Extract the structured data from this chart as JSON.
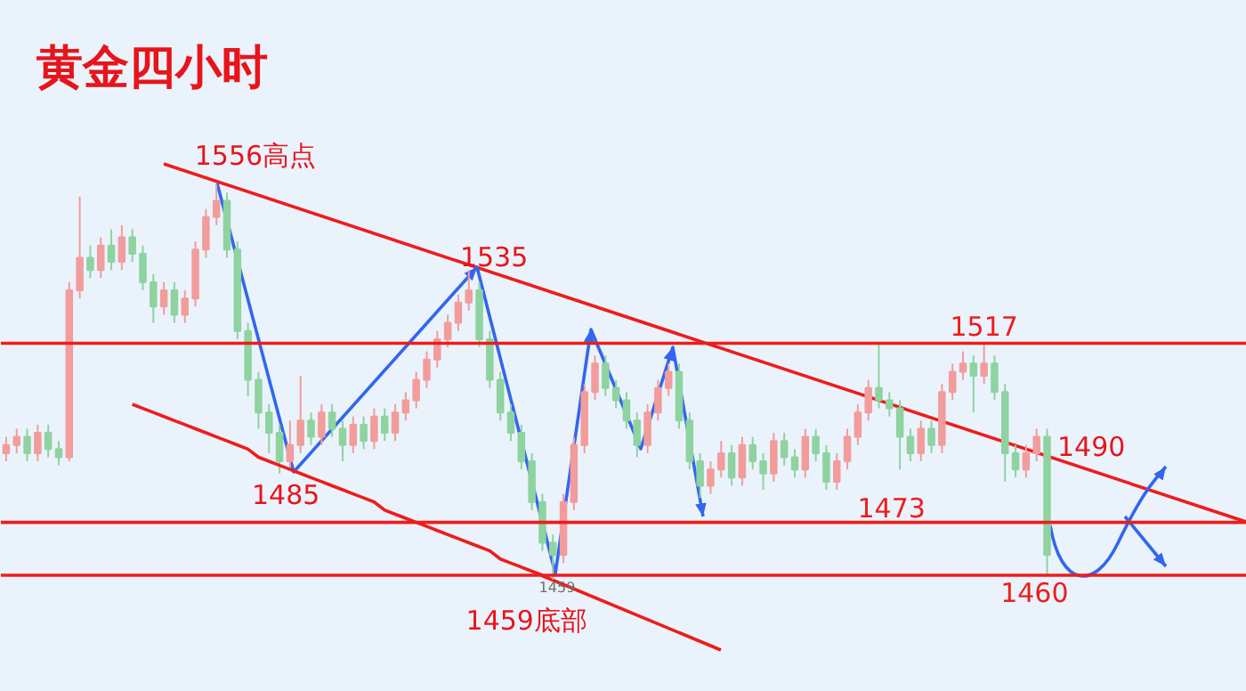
{
  "chart_data": {
    "type": "candlestick",
    "title": "黄金四小时",
    "categories": [
      null,
      null,
      null,
      null,
      null,
      null,
      null,
      null,
      null,
      null,
      null,
      null,
      null,
      null,
      null,
      null,
      null,
      null,
      null,
      null,
      null,
      null,
      null,
      null,
      null,
      null,
      null,
      null,
      null,
      null,
      null,
      null,
      null,
      null,
      null,
      null,
      null,
      null,
      null,
      null,
      null,
      null,
      null,
      null,
      null,
      null,
      null,
      null,
      null,
      null,
      null,
      null,
      null,
      null,
      null,
      null,
      null,
      null,
      null,
      null,
      null,
      null,
      null,
      null,
      null,
      null,
      null,
      null,
      null,
      null,
      null,
      null,
      null,
      null,
      null,
      null,
      null,
      null,
      null,
      null,
      null,
      null,
      null,
      null,
      null,
      null,
      null,
      null,
      null,
      null,
      null,
      null,
      null,
      null,
      null,
      null,
      null,
      null,
      null,
      null
    ],
    "ohlc": [
      [
        1490,
        1494,
        1488,
        1492
      ],
      [
        1492,
        1496,
        1490,
        1494
      ],
      [
        1494,
        1496,
        1488,
        1490
      ],
      [
        1490,
        1497,
        1488,
        1495
      ],
      [
        1495,
        1497,
        1489,
        1491
      ],
      [
        1491,
        1493,
        1487,
        1489
      ],
      [
        1489,
        1532,
        1488,
        1530
      ],
      [
        1530,
        1553,
        1528,
        1538
      ],
      [
        1538,
        1541,
        1533,
        1535
      ],
      [
        1535,
        1543,
        1533,
        1541
      ],
      [
        1541,
        1545,
        1535,
        1537
      ],
      [
        1537,
        1546,
        1535,
        1543
      ],
      [
        1543,
        1545,
        1537,
        1539
      ],
      [
        1539,
        1541,
        1530,
        1532
      ],
      [
        1532,
        1534,
        1522,
        1526
      ],
      [
        1526,
        1532,
        1524,
        1530
      ],
      [
        1530,
        1532,
        1522,
        1524
      ],
      [
        1524,
        1530,
        1522,
        1528
      ],
      [
        1528,
        1542,
        1526,
        1540
      ],
      [
        1540,
        1550,
        1538,
        1548
      ],
      [
        1548,
        1556,
        1546,
        1552
      ],
      [
        1552,
        1554,
        1538,
        1540
      ],
      [
        1540,
        1542,
        1518,
        1520
      ],
      [
        1520,
        1522,
        1504,
        1508
      ],
      [
        1508,
        1510,
        1496,
        1500
      ],
      [
        1500,
        1502,
        1490,
        1495
      ],
      [
        1495,
        1497,
        1485,
        1488
      ],
      [
        1488,
        1498,
        1486,
        1492
      ],
      [
        1492,
        1509,
        1490,
        1498
      ],
      [
        1498,
        1500,
        1492,
        1494
      ],
      [
        1494,
        1502,
        1492,
        1500
      ],
      [
        1500,
        1502,
        1494,
        1496
      ],
      [
        1496,
        1498,
        1488,
        1492
      ],
      [
        1492,
        1499,
        1490,
        1497
      ],
      [
        1497,
        1499,
        1491,
        1493
      ],
      [
        1493,
        1501,
        1491,
        1499
      ],
      [
        1499,
        1501,
        1493,
        1495
      ],
      [
        1495,
        1502,
        1493,
        1500
      ],
      [
        1500,
        1505,
        1498,
        1503
      ],
      [
        1503,
        1510,
        1501,
        1508
      ],
      [
        1508,
        1515,
        1506,
        1513
      ],
      [
        1513,
        1520,
        1511,
        1518
      ],
      [
        1518,
        1524,
        1516,
        1522
      ],
      [
        1522,
        1529,
        1520,
        1527
      ],
      [
        1527,
        1535,
        1525,
        1530
      ],
      [
        1530,
        1532,
        1516,
        1518
      ],
      [
        1518,
        1520,
        1506,
        1508
      ],
      [
        1508,
        1510,
        1498,
        1500
      ],
      [
        1500,
        1502,
        1493,
        1495
      ],
      [
        1495,
        1497,
        1486,
        1488
      ],
      [
        1488,
        1490,
        1476,
        1478
      ],
      [
        1478,
        1480,
        1466,
        1468
      ],
      [
        1468,
        1470,
        1459,
        1465
      ],
      [
        1465,
        1480,
        1463,
        1478
      ],
      [
        1478,
        1494,
        1476,
        1492
      ],
      [
        1492,
        1507,
        1490,
        1505
      ],
      [
        1505,
        1514,
        1503,
        1512
      ],
      [
        1512,
        1514,
        1504,
        1506
      ],
      [
        1506,
        1508,
        1501,
        1503
      ],
      [
        1503,
        1505,
        1496,
        1498
      ],
      [
        1498,
        1500,
        1489,
        1492
      ],
      [
        1492,
        1502,
        1490,
        1500
      ],
      [
        1500,
        1508,
        1498,
        1506
      ],
      [
        1506,
        1512,
        1504,
        1510
      ],
      [
        1510,
        1512,
        1496,
        1498
      ],
      [
        1498,
        1500,
        1486,
        1488
      ],
      [
        1488,
        1490,
        1479,
        1482
      ],
      [
        1482,
        1488,
        1480,
        1486
      ],
      [
        1486,
        1493,
        1484,
        1490
      ],
      [
        1490,
        1492,
        1482,
        1484
      ],
      [
        1484,
        1494,
        1482,
        1492
      ],
      [
        1492,
        1494,
        1486,
        1488
      ],
      [
        1488,
        1490,
        1481,
        1485
      ],
      [
        1485,
        1495,
        1483,
        1493
      ],
      [
        1493,
        1495,
        1487,
        1489
      ],
      [
        1489,
        1491,
        1484,
        1486
      ],
      [
        1486,
        1496,
        1484,
        1494
      ],
      [
        1494,
        1496,
        1488,
        1490
      ],
      [
        1490,
        1492,
        1481,
        1483
      ],
      [
        1483,
        1490,
        1481,
        1488
      ],
      [
        1488,
        1496,
        1486,
        1494
      ],
      [
        1494,
        1502,
        1492,
        1500
      ],
      [
        1500,
        1508,
        1498,
        1506
      ],
      [
        1506,
        1517,
        1501,
        1503
      ],
      [
        1503,
        1505,
        1499,
        1501
      ],
      [
        1501,
        1503,
        1486,
        1494
      ],
      [
        1494,
        1496,
        1488,
        1490
      ],
      [
        1490,
        1498,
        1488,
        1496
      ],
      [
        1496,
        1498,
        1490,
        1492
      ],
      [
        1492,
        1507,
        1490,
        1505
      ],
      [
        1505,
        1512,
        1503,
        1510
      ],
      [
        1510,
        1515,
        1508,
        1512
      ],
      [
        1512,
        1514,
        1500,
        1509
      ],
      [
        1509,
        1517,
        1507,
        1512
      ],
      [
        1512,
        1514,
        1503,
        1505
      ],
      [
        1505,
        1507,
        1483,
        1490
      ],
      [
        1490,
        1492,
        1484,
        1486
      ],
      [
        1486,
        1492,
        1484,
        1490
      ],
      [
        1490,
        1496,
        1488,
        1494
      ],
      [
        1494,
        1496,
        1460,
        1465
      ]
    ],
    "series": [
      {
        "type": "line",
        "color": "#ee1c1c",
        "values": [
          null,
          null,
          null,
          null,
          null,
          null,
          null,
          null,
          null,
          null,
          null,
          null,
          1502,
          1501,
          1500,
          1499,
          1498,
          1497,
          1496,
          1495,
          1494,
          1493,
          1492,
          1491,
          1489,
          1488,
          1487,
          1486,
          1485,
          1484,
          1483,
          1482,
          1481,
          1480,
          1479,
          1478,
          1476,
          1475,
          1474,
          1473,
          1472,
          1471,
          1470,
          1469,
          1468,
          1467,
          1466,
          1464,
          1463,
          1462,
          1461,
          1460,
          null,
          null,
          null,
          null,
          null,
          null,
          null,
          null,
          null,
          null,
          null,
          null,
          null,
          null,
          null,
          null,
          null,
          null,
          null,
          null,
          null,
          null,
          null,
          null,
          null,
          null,
          null,
          null,
          null,
          null,
          null,
          null,
          null,
          null,
          null,
          null,
          null,
          null,
          null,
          null,
          null,
          null,
          null,
          null,
          null,
          null,
          null,
          null
        ]
      }
    ],
    "ref_lines": [
      {
        "axis": "y",
        "value": 1517,
        "label": "1517",
        "color": "#ee1c1c"
      },
      {
        "axis": "y",
        "value": 1473,
        "label": "1473",
        "color": "#ee1c1c"
      },
      {
        "axis": "y",
        "value": 1460,
        "label": "1460",
        "color": "#ee1c1c"
      }
    ],
    "annotations": [
      "1556高点",
      "1535",
      {
        "text": "1485",
        "y": 1485
      },
      {
        "text": "1459",
        "y": 1459
      },
      {
        "text": "1459底部",
        "y": 1459
      },
      "1490"
    ]
  }
}
